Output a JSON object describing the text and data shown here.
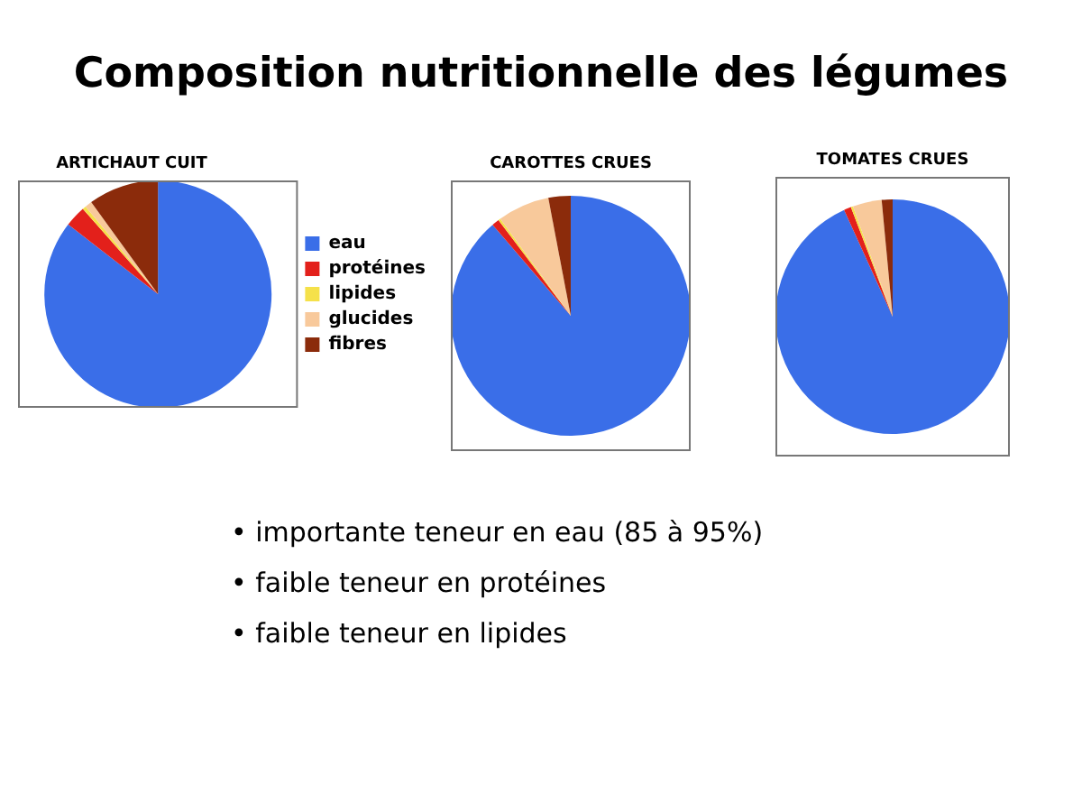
{
  "chart_data": [
    {
      "type": "other",
      "title": "Composition nutritionnelle des légumes"
    },
    {
      "type": "pie",
      "title": "ARTICHAUT CUIT",
      "categories": [
        "eau",
        "protéines",
        "lipides",
        "glucides",
        "fibres"
      ],
      "values": [
        85.5,
        3,
        0.5,
        1,
        10
      ],
      "colors": [
        "#3a6ee8",
        "#e3201b",
        "#f5e14a",
        "#f8c99b",
        "#8b2b0b"
      ],
      "legend": "right"
    },
    {
      "type": "pie",
      "title": "CAROTTES CRUES",
      "categories": [
        null,
        null,
        null,
        null,
        null
      ],
      "values": [
        88.7,
        1,
        0.3,
        7,
        3
      ],
      "colors": [
        "#3a6ee8",
        "#e3201b",
        "#f5e14a",
        "#f8c99b",
        "#8b2b0b"
      ]
    },
    {
      "type": "pie",
      "title": "TOMATES CRUES",
      "categories": [
        null,
        null,
        null,
        null,
        null
      ],
      "values": [
        93.2,
        1,
        0.3,
        4,
        1.5
      ],
      "colors": [
        "#3a6ee8",
        "#e3201b",
        "#f5e14a",
        "#f8c99b",
        "#8b2b0b"
      ]
    },
    {
      "type": "other",
      "annotations": [
        "• importante teneur en eau (85 à 95%)",
        "• faible teneur en protéines",
        "• faible teneur en lipides"
      ]
    }
  ]
}
